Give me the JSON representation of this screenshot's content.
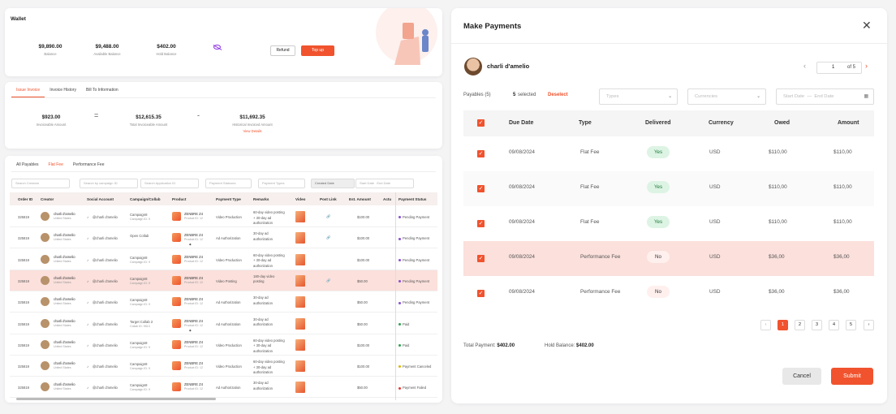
{
  "wallet": {
    "title": "Wallet",
    "balance_value": "$9,890.00",
    "balance_label": "Balance",
    "available_value": "$9,488.00",
    "available_label": "Available Balance",
    "hold_value": "$402.00",
    "hold_label": "Hold Balance",
    "refund_label": "Refund",
    "topup_label": "Top up"
  },
  "invoice": {
    "tabs": [
      "Issue Invoice",
      "Invoice History",
      "Bill To Information"
    ],
    "invoiceable_value": "$923.00",
    "invoiceable_label": "Invoiceable Amount",
    "total_value": "$12,615.35",
    "total_label": "Total Invoiceable Amount",
    "historical_value": "$11,692.35",
    "historical_label": "Historical Invoiced Amount",
    "view_details": "View Details",
    "eq": "=",
    "minus": "-"
  },
  "payables": {
    "tabs": [
      "All Payables",
      "Flat Fee",
      "Performance Fee"
    ],
    "filters": [
      "Search Creators",
      "Search by campaign ID",
      "Search Application ID",
      "Payment Statuses",
      "Payment Types",
      "Created Date",
      "Start Date",
      "End Date"
    ],
    "headers": [
      "Order ID",
      "Creator",
      "Social Account",
      "Campaign/Collab",
      "Product",
      "Payment Type",
      "Remarks",
      "Video",
      "Post Link",
      "Est. Amount",
      "Actu",
      "Payment Status"
    ],
    "rows": [
      {
        "order": "325819",
        "creator": "charli d'amelio",
        "country": "United States",
        "social": "@charli d'amelio",
        "camp": "Campaign8",
        "camp_id": "Campaign ID: 9",
        "product": "ZENBRE Z4",
        "pid": "Product ID: 12",
        "ptype": "Video Production",
        "remarks": "60-day video posting + 30-day ad authorization",
        "amount": "$100.00",
        "status": "Pending Payment",
        "status_color": "#8a4dd6"
      },
      {
        "order": "325819",
        "creator": "charli d'amelio",
        "country": "United States",
        "social": "@charli d'amelio",
        "camp": "Open Collab",
        "camp_id": "",
        "product": "ZENBRE Z4",
        "pid": "Product ID: 12",
        "ptype": "Ad Authorization",
        "remarks": "30-day ad authorization",
        "amount": "$100.00",
        "status": "Pending Payment",
        "status_color": "#8a4dd6"
      },
      {
        "order": "325819",
        "creator": "charli d'amelio",
        "country": "United States",
        "social": "@charli d'amelio",
        "camp": "Campaign8",
        "camp_id": "Campaign ID: 9",
        "product": "ZENBRE Z4",
        "pid": "Product ID: 12",
        "ptype": "Video Production",
        "remarks": "60-day video posting + 30-day ad authorization",
        "amount": "$100.00",
        "status": "Pending Payment",
        "status_color": "#8a4dd6"
      },
      {
        "order": "325819",
        "creator": "charli d'amelio",
        "country": "United States",
        "social": "@charli d'amelio",
        "camp": "Campaign8",
        "camp_id": "Campaign ID: 9",
        "product": "ZENBRE Z4",
        "pid": "Product ID: 12",
        "ptype": "Video Posting",
        "remarks": "180-day video posting",
        "amount": "$50.00",
        "status": "Pending Payment",
        "status_color": "#8a4dd6"
      },
      {
        "order": "325819",
        "creator": "charli d'amelio",
        "country": "United States",
        "social": "@charli d'amelio",
        "camp": "Campaign8",
        "camp_id": "Campaign ID: 9",
        "product": "ZENBRE Z4",
        "pid": "Product ID: 12",
        "ptype": "Ad Authorization",
        "remarks": "30-day ad authorization",
        "amount": "$50.00",
        "status": "Pending Payment",
        "status_color": "#8a4dd6"
      },
      {
        "order": "325819",
        "creator": "charli d'amelio",
        "country": "United States",
        "social": "@charli d'amelio",
        "camp": "Target Collab 2",
        "camp_id": "Collab ID: 9513",
        "product": "ZENBRE Z4",
        "pid": "Product ID: 12",
        "ptype": "Ad Authorization",
        "remarks": "30-day ad authorization",
        "amount": "$50.00",
        "status": "Paid",
        "status_color": "#2fa14f"
      },
      {
        "order": "325819",
        "creator": "charli d'amelio",
        "country": "United States",
        "social": "@charli d'amelio",
        "camp": "Campaign8",
        "camp_id": "Campaign ID: 9",
        "product": "ZENBRE Z4",
        "pid": "Product ID: 12",
        "ptype": "Video Production",
        "remarks": "60-day video posting + 30-day ad authorization",
        "amount": "$100.00",
        "status": "Paid",
        "status_color": "#2fa14f"
      },
      {
        "order": "325819",
        "creator": "charli d'amelio",
        "country": "United States",
        "social": "@charli d'amelio",
        "camp": "Campaign8",
        "camp_id": "Campaign ID: 9",
        "product": "ZENBRE Z4",
        "pid": "Product ID: 12",
        "ptype": "Video Production",
        "remarks": "60-day video posting + 30-day ad authorization",
        "amount": "$100.00",
        "status": "Payment Canceled",
        "status_color": "#e0b400"
      },
      {
        "order": "325819",
        "creator": "charli d'amelio",
        "country": "United States",
        "social": "@charli d'amelio",
        "camp": "Campaign8",
        "camp_id": "Campaign ID: 9",
        "product": "ZENBRE Z4",
        "pid": "Product ID: 12",
        "ptype": "Ad Authorization",
        "remarks": "30-day ad authorization",
        "amount": "$50.00",
        "status": "Payment Failed",
        "status_color": "#e53935"
      }
    ]
  },
  "modal": {
    "title": "Make Payments",
    "creator_name": "charli d'amelio",
    "page_current": "1",
    "page_of": "of 5",
    "payables_label": "Payables (5)",
    "selected_count": "5",
    "selected_label": "selected",
    "deselect_label": "Deselect",
    "types_placeholder": "Types",
    "currencies_placeholder": "Currencies",
    "start_date": "Start Date",
    "end_date": "End Date",
    "headers": [
      "Due Date",
      "Type",
      "Delivered",
      "Currency",
      "Owed",
      "Amount"
    ],
    "rows": [
      {
        "due": "09/08/2024",
        "type": "Flat Fee",
        "delivered": "Yes",
        "currency": "USD",
        "owed": "$110,00",
        "amount": "$110,00"
      },
      {
        "due": "09/08/2024",
        "type": "Flat Fee",
        "delivered": "Yes",
        "currency": "USD",
        "owed": "$110,00",
        "amount": "$110,00"
      },
      {
        "due": "09/08/2024",
        "type": "Flat Fee",
        "delivered": "Yes",
        "currency": "USD",
        "owed": "$110,00",
        "amount": "$110,00"
      },
      {
        "due": "09/08/2024",
        "type": "Performance Fee",
        "delivered": "No",
        "currency": "USD",
        "owed": "$36,00",
        "amount": "$36,00"
      },
      {
        "due": "09/08/2024",
        "type": "Performance Fee",
        "delivered": "No",
        "currency": "USD",
        "owed": "$36,00",
        "amount": "$36,00"
      }
    ],
    "pages": [
      "1",
      "2",
      "3",
      "4",
      "5"
    ],
    "total_payment_label": "Total Payment:",
    "total_payment_value": "$402.00",
    "hold_balance_label": "Hold Balance:",
    "hold_balance_value": "$402.00",
    "cancel_label": "Cancel",
    "submit_label": "Submit"
  }
}
